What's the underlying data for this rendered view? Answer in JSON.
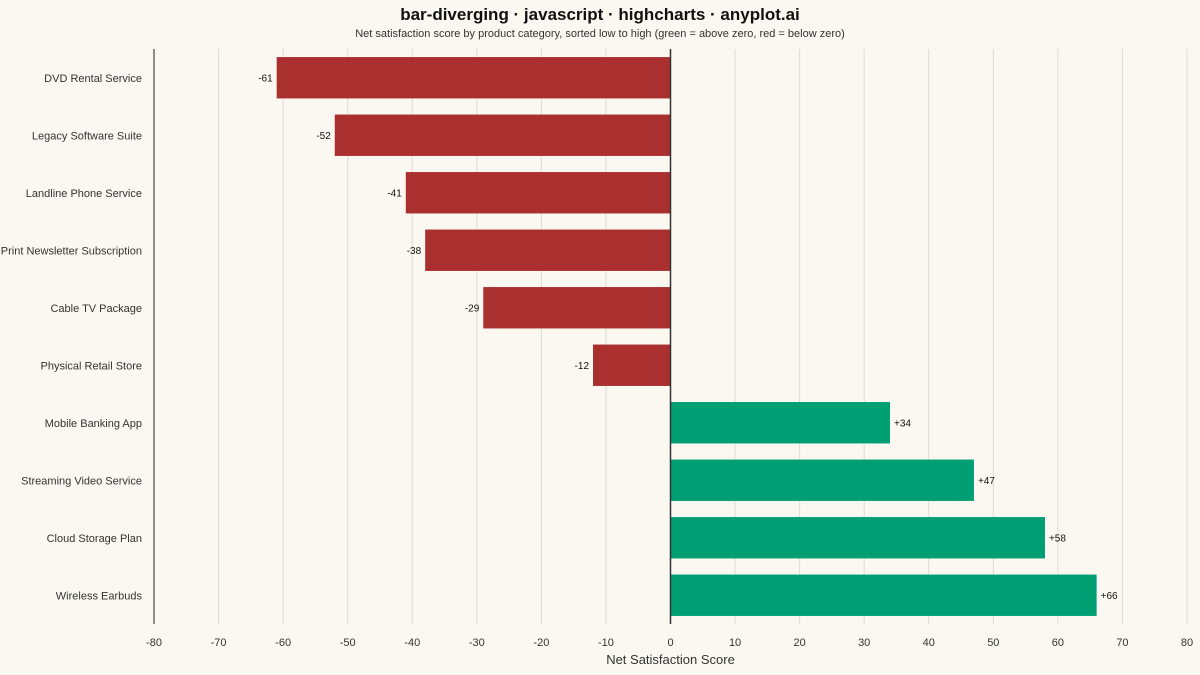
{
  "colors": {
    "positive": "#009E73",
    "negative": "#AA3030",
    "grid": "#DDDBD3",
    "zero_line": "#333333",
    "axis_line": "#444444",
    "background": "#FAF8F1"
  },
  "chart_data": {
    "type": "bar",
    "orientation": "horizontal",
    "title": "bar-diverging · javascript · highcharts · anyplot.ai",
    "subtitle": "Net satisfaction score by product category, sorted low to high (green = above zero, red = below zero)",
    "xlabel": "Net Satisfaction Score",
    "ylabel": "",
    "xlim": [
      -80,
      80
    ],
    "xticks": [
      -80,
      -70,
      -60,
      -50,
      -40,
      -30,
      -20,
      -10,
      0,
      10,
      20,
      30,
      40,
      50,
      60,
      70,
      80
    ],
    "grid": true,
    "categories": [
      "DVD Rental Service",
      "Legacy Software Suite",
      "Landline Phone Service",
      "Print Newsletter Subscription",
      "Cable TV Package",
      "Physical Retail Store",
      "Mobile Banking App",
      "Streaming Video Service",
      "Cloud Storage Plan",
      "Wireless Earbuds"
    ],
    "values": [
      -61,
      -52,
      -41,
      -38,
      -29,
      -12,
      34,
      47,
      58,
      66
    ],
    "data_labels": [
      "-61",
      "-52",
      "-41",
      "-38",
      "-29",
      "-12",
      "+34",
      "+47",
      "+58",
      "+66"
    ]
  }
}
